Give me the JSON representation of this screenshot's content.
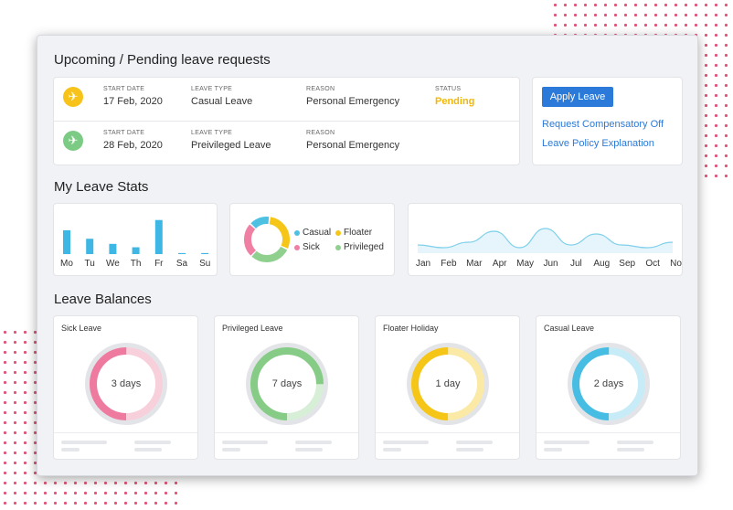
{
  "requests": {
    "title": "Upcoming / Pending leave requests",
    "rows": [
      {
        "start_label": "START DATE",
        "start": "17 Feb, 2020",
        "type_label": "LEAVE TYPE",
        "type": "Casual Leave",
        "reason_label": "REASON",
        "reason": "Personal Emergency",
        "status_label": "STATUS",
        "status": "Pending",
        "icon": "plane-departure-icon",
        "icon_color": "#f7c31a"
      },
      {
        "start_label": "START DATE",
        "start": "28 Feb, 2020",
        "type_label": "LEAVE TYPE",
        "type": "Preivileged Leave",
        "reason_label": "REASON",
        "reason": "Personal Emergency",
        "icon": "plane-departure-icon",
        "icon_color": "#7ccb84"
      }
    ],
    "status_color": "#f2b705"
  },
  "actions": {
    "apply_label": "Apply Leave",
    "link1": "Request Compensatory Off",
    "link2": "Leave Policy Explanation"
  },
  "stats": {
    "title": "My Leave Stats",
    "legend": [
      {
        "label": "Casual",
        "color": "#4ec1e3"
      },
      {
        "label": "Floater",
        "color": "#f5c518"
      },
      {
        "label": "Sick",
        "color": "#ef7fa3"
      },
      {
        "label": "Privileged",
        "color": "#8fd08f"
      }
    ]
  },
  "chart_data": [
    {
      "type": "bar",
      "categories": [
        "Mo",
        "Tu",
        "We",
        "Th",
        "Fr",
        "Sa",
        "Su"
      ],
      "values": [
        7,
        4.5,
        3,
        2,
        10,
        0.3,
        0.3
      ],
      "ylim": [
        0,
        11
      ],
      "color": "#3fb7e4"
    },
    {
      "type": "pie",
      "categories": [
        "Casual",
        "Floater",
        "Sick",
        "Privileged"
      ],
      "values": [
        15,
        30,
        25,
        30
      ],
      "colors": [
        "#4ec1e3",
        "#f5c518",
        "#ef7fa3",
        "#8fd08f"
      ]
    },
    {
      "type": "area",
      "categories": [
        "Jan",
        "Feb",
        "Mar",
        "Apr",
        "May",
        "Jun",
        "Jul",
        "Aug",
        "Sep",
        "Oct",
        "Nov"
      ],
      "values": [
        3,
        2,
        4,
        8,
        2,
        9,
        3,
        7,
        3,
        2,
        4
      ],
      "ylim": [
        0,
        10
      ],
      "color": "#7fd0ea"
    }
  ],
  "balances": {
    "title": "Leave Balances",
    "items": [
      {
        "name": "Sick Leave",
        "value": "3 days",
        "fraction": 0.5,
        "color": "#ee7aa0",
        "light": "#f8d0dc"
      },
      {
        "name": "Privileged Leave",
        "value": "7 days",
        "fraction": 0.75,
        "color": "#86cc86",
        "light": "#d6efd6"
      },
      {
        "name": "Floater Holiday",
        "value": "1 day",
        "fraction": 0.5,
        "color": "#f5c518",
        "light": "#fbe9a6"
      },
      {
        "name": "Casual Leave",
        "value": "2 days",
        "fraction": 0.5,
        "color": "#47bde3",
        "light": "#c8ecf7"
      }
    ]
  }
}
